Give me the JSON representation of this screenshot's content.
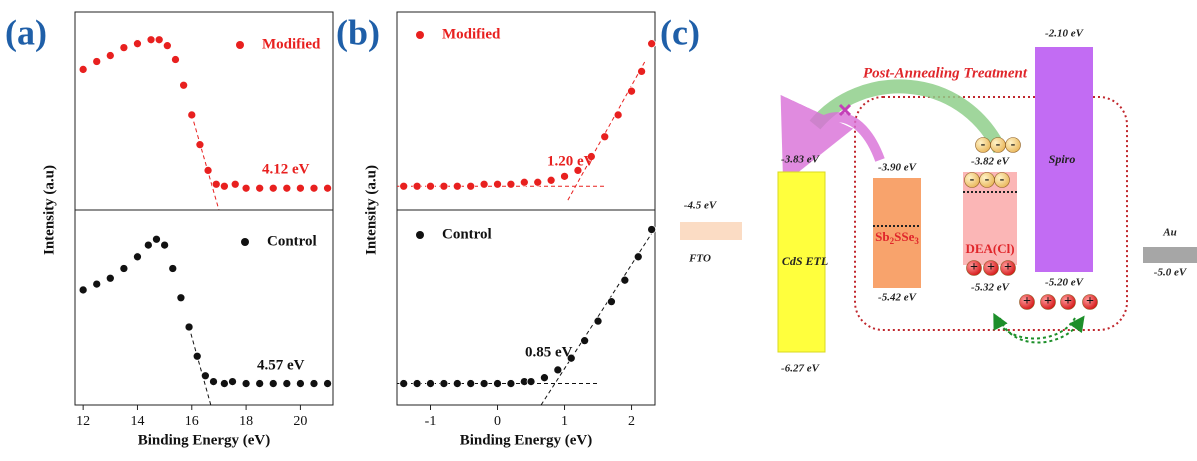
{
  "panel_labels": [
    "(a)",
    "(b)",
    "(c)"
  ],
  "chart_data": [
    {
      "type": "scatter",
      "y_label": "Intensity (a.u)",
      "xlim": [
        11.7,
        21.2
      ],
      "ylim": [
        0,
        1
      ],
      "x": [
        12,
        12.5,
        13,
        13.5,
        14,
        14.5,
        14.8,
        15.1,
        15.4,
        15.7,
        16,
        16.3,
        16.6,
        16.9,
        17.2,
        17.6,
        18,
        18.5,
        19,
        19.5,
        20,
        20.5,
        21
      ],
      "series": [
        {
          "name": "Modified",
          "color": "#e8201f",
          "values": [
            0.71,
            0.75,
            0.78,
            0.82,
            0.84,
            0.86,
            0.86,
            0.83,
            0.76,
            0.63,
            0.48,
            0.33,
            0.2,
            0.13,
            0.12,
            0.13,
            0.11,
            0.11,
            0.11,
            0.11,
            0.11,
            0.11,
            0.11
          ]
        }
      ],
      "fit_lines": [
        {
          "x": [
            16.0,
            17.0
          ],
          "values": [
            0.48,
            0.0
          ]
        }
      ],
      "annotation": "4.12 eV"
    },
    {
      "type": "scatter",
      "x_label": "Binding Energy (eV)",
      "xlim": [
        11.7,
        21.2
      ],
      "ylim": [
        0,
        1
      ],
      "xticks": [
        12,
        14,
        16,
        18,
        20
      ],
      "x": [
        12,
        12.5,
        13,
        13.5,
        14,
        14.4,
        14.7,
        15,
        15.3,
        15.6,
        15.9,
        16.2,
        16.5,
        16.8,
        17.2,
        17.5,
        18,
        18.5,
        19,
        19.5,
        20,
        20.5,
        21
      ],
      "series": [
        {
          "name": "Control",
          "color": "#111111",
          "values": [
            0.59,
            0.62,
            0.65,
            0.7,
            0.76,
            0.82,
            0.85,
            0.82,
            0.7,
            0.55,
            0.4,
            0.25,
            0.15,
            0.12,
            0.11,
            0.12,
            0.11,
            0.11,
            0.11,
            0.11,
            0.11,
            0.11,
            0.11
          ]
        }
      ],
      "fit_lines": [
        {
          "x": [
            15.9,
            16.7
          ],
          "values": [
            0.4,
            0.0
          ]
        }
      ],
      "annotation": "4.57 eV"
    },
    {
      "type": "scatter",
      "y_label": "Intensity (a.u)",
      "xlim": [
        -1.5,
        2.35
      ],
      "ylim": [
        0,
        1
      ],
      "x": [
        -1.4,
        -1.2,
        -1,
        -0.8,
        -0.6,
        -0.4,
        -0.2,
        0,
        0.2,
        0.4,
        0.6,
        0.8,
        1,
        1.2,
        1.4,
        1.6,
        1.8,
        2,
        2.15,
        2.3
      ],
      "series": [
        {
          "name": "Modified",
          "color": "#e8201f",
          "values": [
            0.12,
            0.12,
            0.12,
            0.12,
            0.12,
            0.12,
            0.13,
            0.13,
            0.13,
            0.14,
            0.14,
            0.15,
            0.17,
            0.2,
            0.27,
            0.37,
            0.48,
            0.6,
            0.7,
            0.84
          ]
        }
      ],
      "fit_lines": [
        {
          "x": [
            1.05,
            2.2
          ],
          "values": [
            0.05,
            0.75
          ]
        },
        {
          "x": [
            -1.5,
            1.6
          ],
          "values": [
            0.12,
            0.12
          ]
        }
      ],
      "annotation": "1.20 eV"
    },
    {
      "type": "scatter",
      "x_label": "Binding Energy (eV)",
      "xlim": [
        -1.5,
        2.35
      ],
      "ylim": [
        0,
        1
      ],
      "xticks": [
        -1,
        0,
        1,
        2
      ],
      "x": [
        -1.4,
        -1.2,
        -1,
        -0.8,
        -0.6,
        -0.4,
        -0.2,
        0,
        0.2,
        0.4,
        0.5,
        0.7,
        0.9,
        1.1,
        1.3,
        1.5,
        1.7,
        1.9,
        2.1,
        2.3
      ],
      "series": [
        {
          "name": "Control",
          "color": "#111111",
          "values": [
            0.11,
            0.11,
            0.11,
            0.11,
            0.11,
            0.11,
            0.11,
            0.11,
            0.11,
            0.12,
            0.12,
            0.14,
            0.18,
            0.24,
            0.33,
            0.43,
            0.53,
            0.64,
            0.76,
            0.9
          ]
        }
      ],
      "fit_lines": [
        {
          "x": [
            0.65,
            2.3
          ],
          "values": [
            0.0,
            0.88
          ]
        },
        {
          "x": [
            -1.5,
            1.5
          ],
          "values": [
            0.11,
            0.11
          ]
        }
      ],
      "annotation": "0.85 eV"
    }
  ],
  "diagram": {
    "title": "Post-Annealing Treatment",
    "electron_symbol": "-",
    "hole_symbol": "+",
    "fto": {
      "name": "FTO",
      "level": "-4.5 eV"
    },
    "cds": {
      "name": "CdS ETL",
      "top": "-3.83 eV",
      "bottom": "-6.27 eV"
    },
    "sb": {
      "name": [
        "Sb",
        "2",
        "SSe",
        "3"
      ],
      "top": "-3.90 eV",
      "bottom": "-5.42 eV"
    },
    "dea": {
      "name": "DEA(Cl)",
      "top": "-3.82 eV",
      "bottom": "-5.32 eV"
    },
    "spiro": {
      "name": "Spiro",
      "top": "-2.10 eV",
      "bottom": "-5.20 eV"
    },
    "au": {
      "name": "Au",
      "level": "-5.0 eV"
    }
  }
}
